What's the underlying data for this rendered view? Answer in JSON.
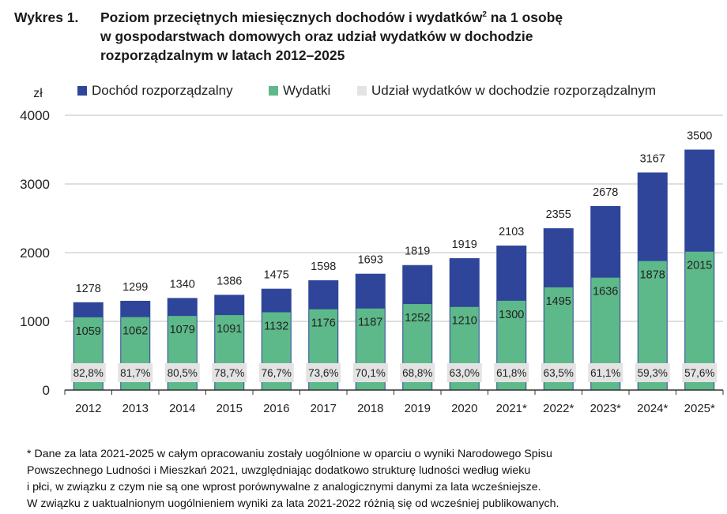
{
  "title": {
    "prefix": "Wykres 1.",
    "line1": "Poziom przeciętnych miesięcznych dochodów i wydatków",
    "line1_sup": "2",
    "line1_tail": " na 1 osobę",
    "line2": "w gospodarstwach domowych oraz udział wydatków w dochodzie",
    "line3": "rozporządzalnym w latach 2012–2025"
  },
  "colors": {
    "income": "#2E4599",
    "expenses": "#5DB98A",
    "share_box": "#E3E3E3",
    "grid": "#BFBFBF",
    "axis": "#333333"
  },
  "chart_data": {
    "type": "bar",
    "ylabel": "zł",
    "ylim": [
      0,
      4000
    ],
    "yticks": [
      0,
      1000,
      2000,
      3000,
      4000
    ],
    "grid": true,
    "legend_position": "top",
    "categories": [
      "2012",
      "2013",
      "2014",
      "2015",
      "2016",
      "2017",
      "2018",
      "2019",
      "2020",
      "2021*",
      "2022*",
      "2023*",
      "2024*",
      "2025*"
    ],
    "series": [
      {
        "name": "Dochód rozporządzalny",
        "values": [
          1278,
          1299,
          1340,
          1386,
          1475,
          1598,
          1693,
          1819,
          1919,
          2103,
          2355,
          2678,
          3167,
          3500
        ]
      },
      {
        "name": "Wydatki",
        "values": [
          1059,
          1062,
          1079,
          1091,
          1132,
          1176,
          1187,
          1252,
          1210,
          1300,
          1495,
          1636,
          1878,
          2015
        ]
      },
      {
        "name": "Udział wydatków w dochodzie rozporządzalnym",
        "values": [
          "82,8%",
          "81,7%",
          "80,5%",
          "78,7%",
          "76,7%",
          "73,6%",
          "70,1%",
          "68,8%",
          "63,0%",
          "61,8%",
          "63,5%",
          "61,1%",
          "59,3%",
          "57,6%"
        ]
      }
    ]
  },
  "footnote": [
    "* Dane za lata 2021-2025 w całym opracowaniu zostały uogólnione w oparciu o wyniki Narodowego Spisu",
    "Powszechnego Ludności i Mieszkań 2021, uwzględniając dodatkowo strukturę ludności według wieku",
    "i płci, w związku z czym nie są one wprost porównywalne z analogicznymi danymi za lata wcześniejsze.",
    "W związku z uaktualnionym uogólnieniem wyniki za lata 2021-2022 różnią się od wcześniej publikowanych."
  ]
}
